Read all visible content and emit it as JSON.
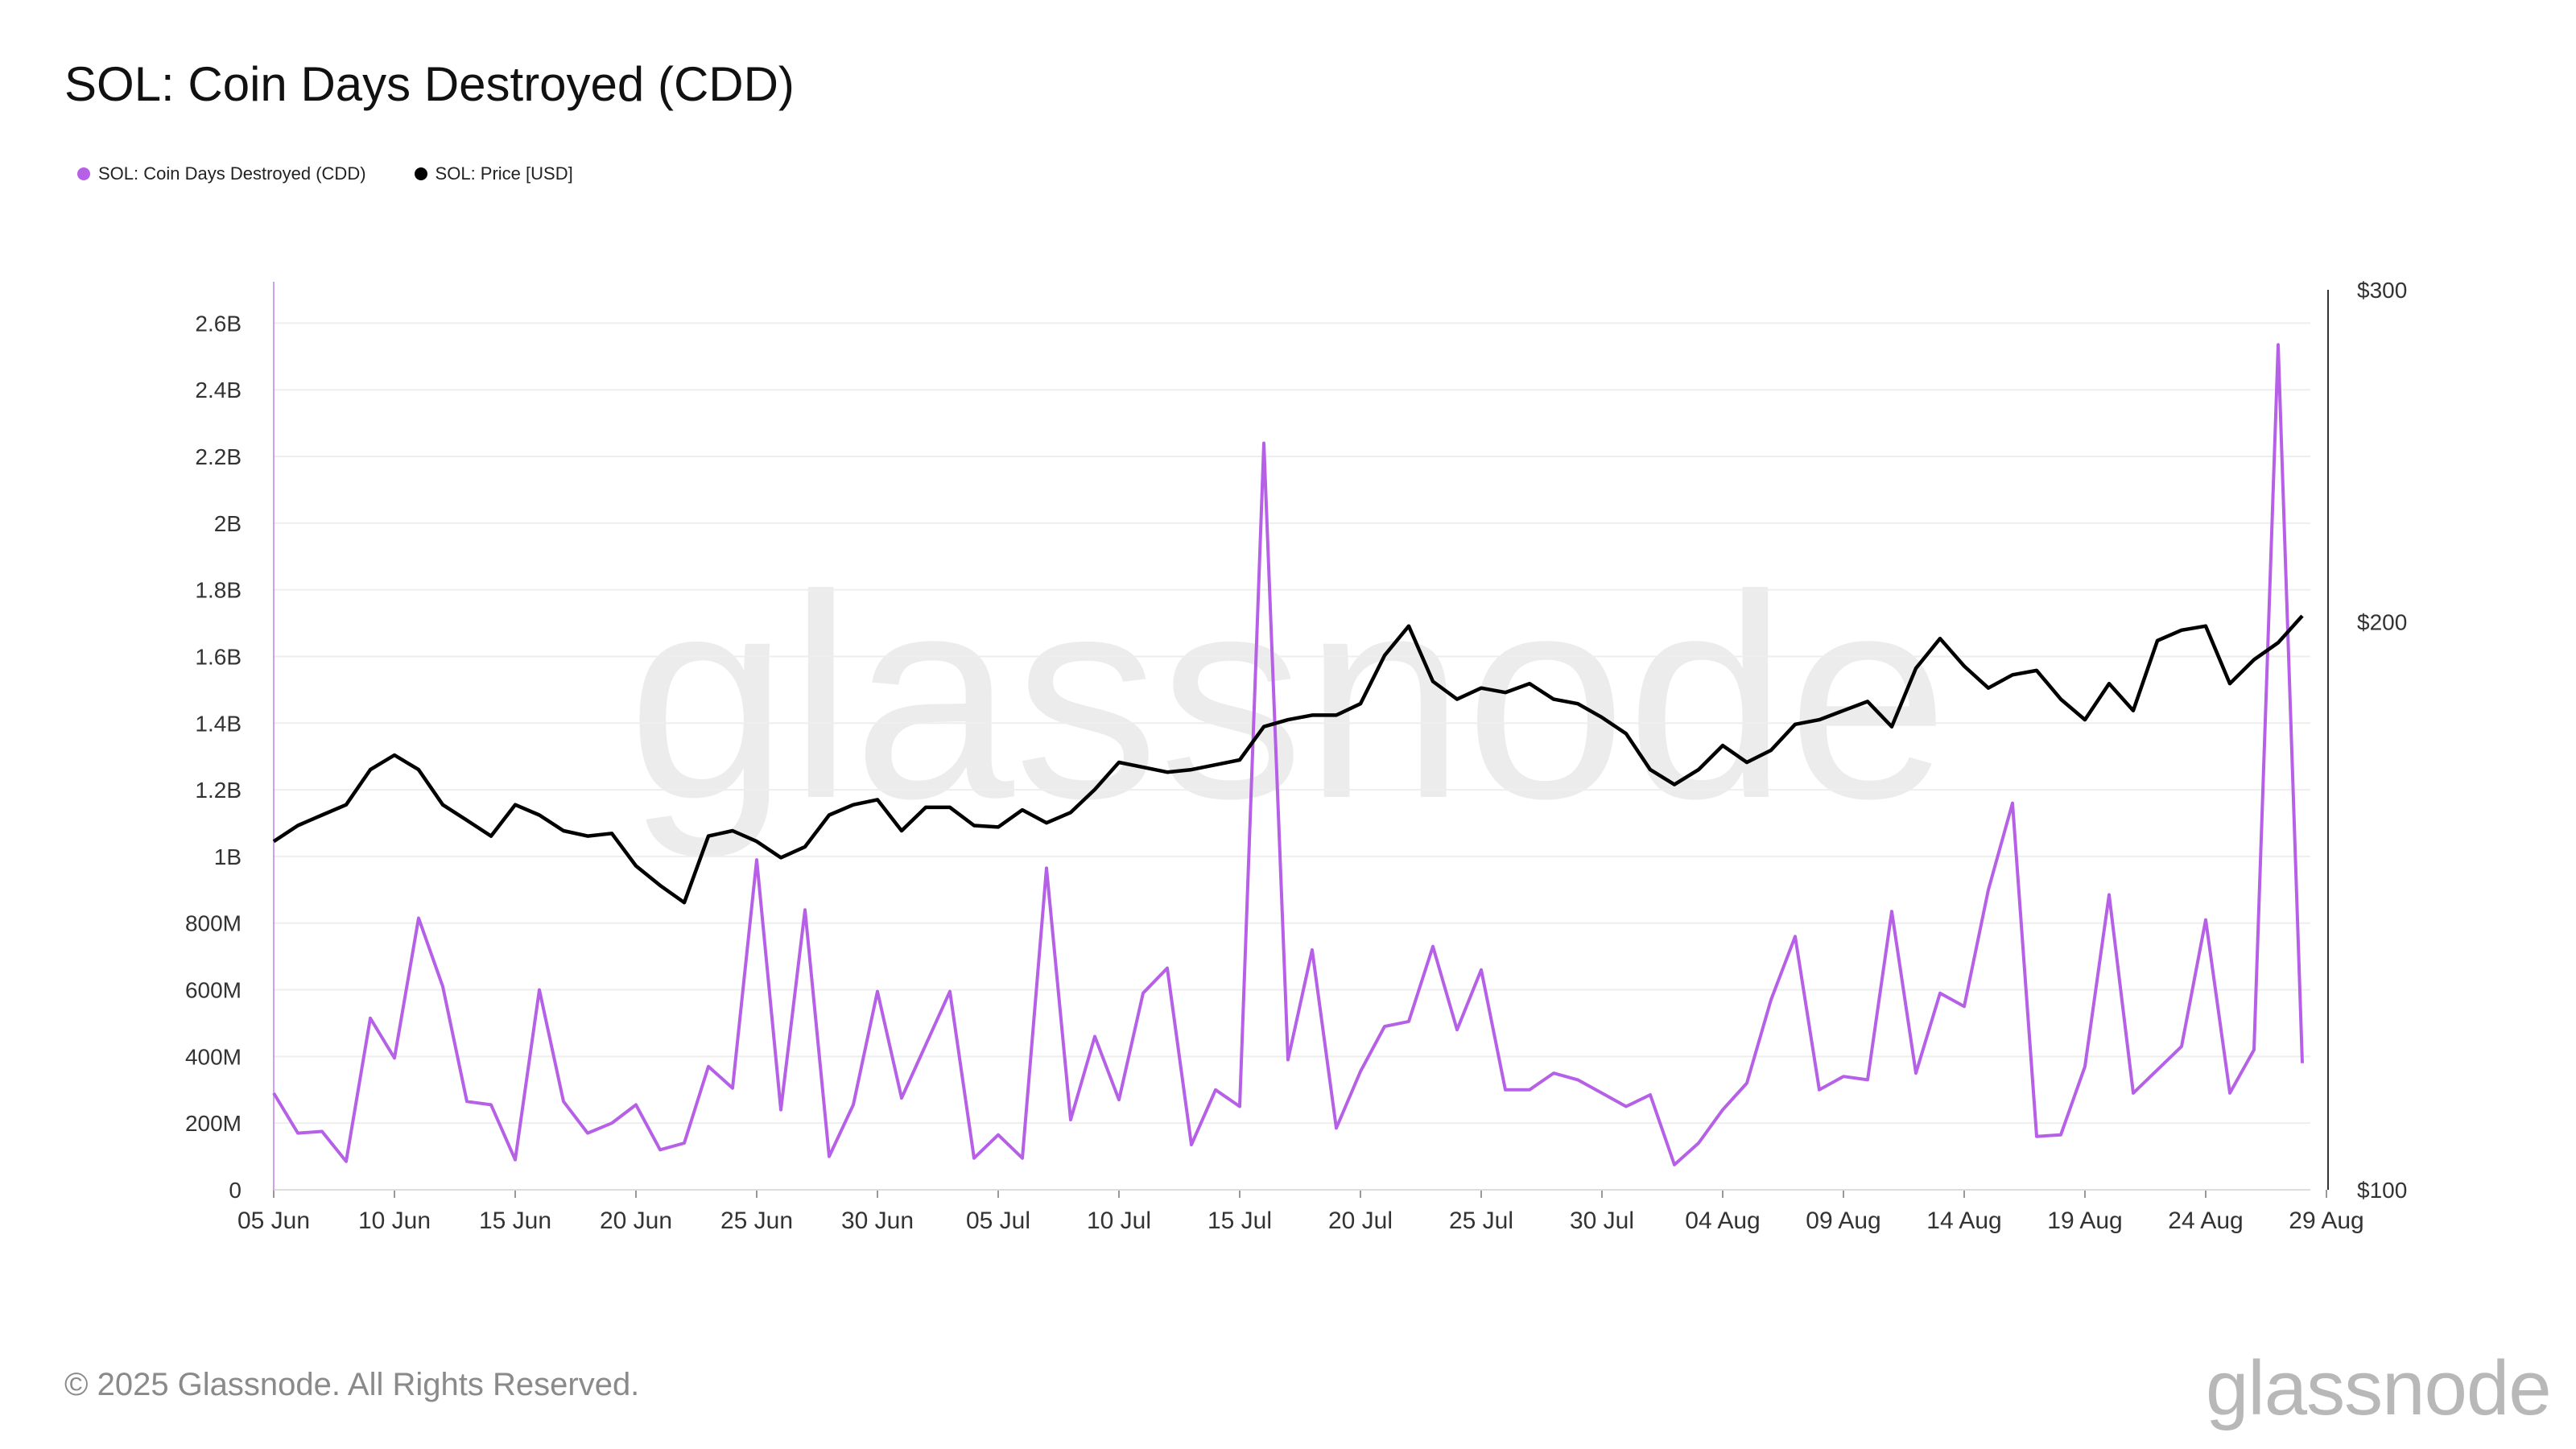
{
  "page": {
    "title": "SOL: Coin Days Destroyed (CDD)",
    "copyright": "© 2025 Glassnode. All Rights Reserved.",
    "brand": "glassnode",
    "watermark": "glassnode"
  },
  "colors": {
    "cdd": "#b560e6",
    "price": "#000000",
    "grid": "#eeeeee",
    "axis_text": "#333333",
    "watermark": "#ececec"
  },
  "chart_data": {
    "type": "line",
    "legend_position": "top-left",
    "grid": true,
    "x": [
      "05 Jun",
      "06 Jun",
      "07 Jun",
      "08 Jun",
      "09 Jun",
      "10 Jun",
      "11 Jun",
      "12 Jun",
      "13 Jun",
      "14 Jun",
      "15 Jun",
      "16 Jun",
      "17 Jun",
      "18 Jun",
      "19 Jun",
      "20 Jun",
      "21 Jun",
      "22 Jun",
      "23 Jun",
      "24 Jun",
      "25 Jun",
      "26 Jun",
      "27 Jun",
      "28 Jun",
      "29 Jun",
      "30 Jun",
      "01 Jul",
      "02 Jul",
      "03 Jul",
      "04 Jul",
      "05 Jul",
      "06 Jul",
      "07 Jul",
      "08 Jul",
      "09 Jul",
      "10 Jul",
      "11 Jul",
      "12 Jul",
      "13 Jul",
      "14 Jul",
      "15 Jul",
      "16 Jul",
      "17 Jul",
      "18 Jul",
      "19 Jul",
      "20 Jul",
      "21 Jul",
      "22 Jul",
      "23 Jul",
      "24 Jul",
      "25 Jul",
      "26 Jul",
      "27 Jul",
      "28 Jul",
      "29 Jul",
      "30 Jul",
      "31 Jul",
      "01 Aug",
      "02 Aug",
      "03 Aug",
      "04 Aug",
      "05 Aug",
      "06 Aug",
      "07 Aug",
      "08 Aug",
      "09 Aug",
      "10 Aug",
      "11 Aug",
      "12 Aug",
      "13 Aug",
      "14 Aug",
      "15 Aug",
      "16 Aug",
      "17 Aug",
      "18 Aug",
      "19 Aug",
      "20 Aug",
      "21 Aug",
      "22 Aug",
      "23 Aug",
      "24 Aug",
      "25 Aug",
      "26 Aug",
      "27 Aug",
      "28 Aug"
    ],
    "x_ticks": [
      "05 Jun",
      "10 Jun",
      "15 Jun",
      "20 Jun",
      "25 Jun",
      "30 Jun",
      "05 Jul",
      "10 Jul",
      "15 Jul",
      "20 Jul",
      "25 Jul",
      "30 Jul",
      "04 Aug",
      "09 Aug",
      "14 Aug",
      "19 Aug",
      "24 Aug",
      "29 Aug"
    ],
    "y_left": {
      "min": 0,
      "max": 2700000000,
      "ticks": [
        0,
        200000000,
        400000000,
        600000000,
        800000000,
        1000000000,
        1200000000,
        1400000000,
        1600000000,
        1800000000,
        2000000000,
        2200000000,
        2400000000,
        2600000000
      ],
      "tick_labels": [
        "0",
        "200M",
        "400M",
        "600M",
        "800M",
        "1B",
        "1.2B",
        "1.4B",
        "1.6B",
        "1.8B",
        "2B",
        "2.2B",
        "2.4B",
        "2.6B"
      ]
    },
    "y_right": {
      "min": 100,
      "max": 300,
      "scale": "log",
      "ticks": [
        100,
        200,
        300
      ],
      "tick_labels": [
        "$100",
        "$200",
        "$300"
      ]
    },
    "series": [
      {
        "name": "SOL: Coin Days Destroyed (CDD)",
        "axis": "left",
        "color": "#b560e6",
        "values": [
          290000000,
          170000000,
          175000000,
          85000000,
          515000000,
          395000000,
          815000000,
          610000000,
          265000000,
          255000000,
          90000000,
          600000000,
          265000000,
          170000000,
          200000000,
          255000000,
          120000000,
          140000000,
          370000000,
          305000000,
          990000000,
          240000000,
          840000000,
          100000000,
          255000000,
          595000000,
          275000000,
          435000000,
          595000000,
          95000000,
          165000000,
          95000000,
          965000000,
          210000000,
          460000000,
          270000000,
          590000000,
          665000000,
          135000000,
          300000000,
          250000000,
          2240000000,
          390000000,
          720000000,
          185000000,
          355000000,
          490000000,
          505000000,
          730000000,
          480000000,
          660000000,
          300000000,
          300000000,
          350000000,
          330000000,
          290000000,
          250000000,
          285000000,
          75000000,
          140000000,
          240000000,
          320000000,
          570000000,
          760000000,
          300000000,
          340000000,
          330000000,
          835000000,
          350000000,
          590000000,
          550000000,
          900000000,
          1160000000,
          160000000,
          165000000,
          370000000,
          885000000,
          290000000,
          360000000,
          430000000,
          810000000,
          290000000,
          420000000,
          2535000000,
          380000000
        ]
      },
      {
        "name": "SOL: Price [USD]",
        "axis": "right",
        "color": "#000000",
        "values": [
          153,
          156,
          158,
          160,
          167,
          170,
          167,
          160,
          157,
          154,
          160,
          158,
          155,
          154,
          154.5,
          148.5,
          145,
          142,
          154,
          155,
          153,
          150,
          152,
          158,
          160,
          161,
          155,
          159.5,
          159.5,
          156,
          155.7,
          159,
          156.5,
          158.5,
          163,
          168.5,
          167.5,
          166.5,
          167,
          168,
          169,
          176,
          177.5,
          178.5,
          178.5,
          181,
          192,
          199,
          186,
          182,
          184.5,
          183.5,
          185.5,
          182,
          181,
          178,
          174.5,
          167,
          164,
          167,
          172,
          168.5,
          171,
          176.5,
          177.5,
          179.5,
          181.5,
          176,
          189,
          196,
          189.5,
          184.5,
          187.5,
          188.5,
          182,
          177.5,
          185.5,
          179.5,
          195.5,
          198,
          199,
          185.5,
          191,
          195,
          201.5
        ]
      }
    ]
  }
}
